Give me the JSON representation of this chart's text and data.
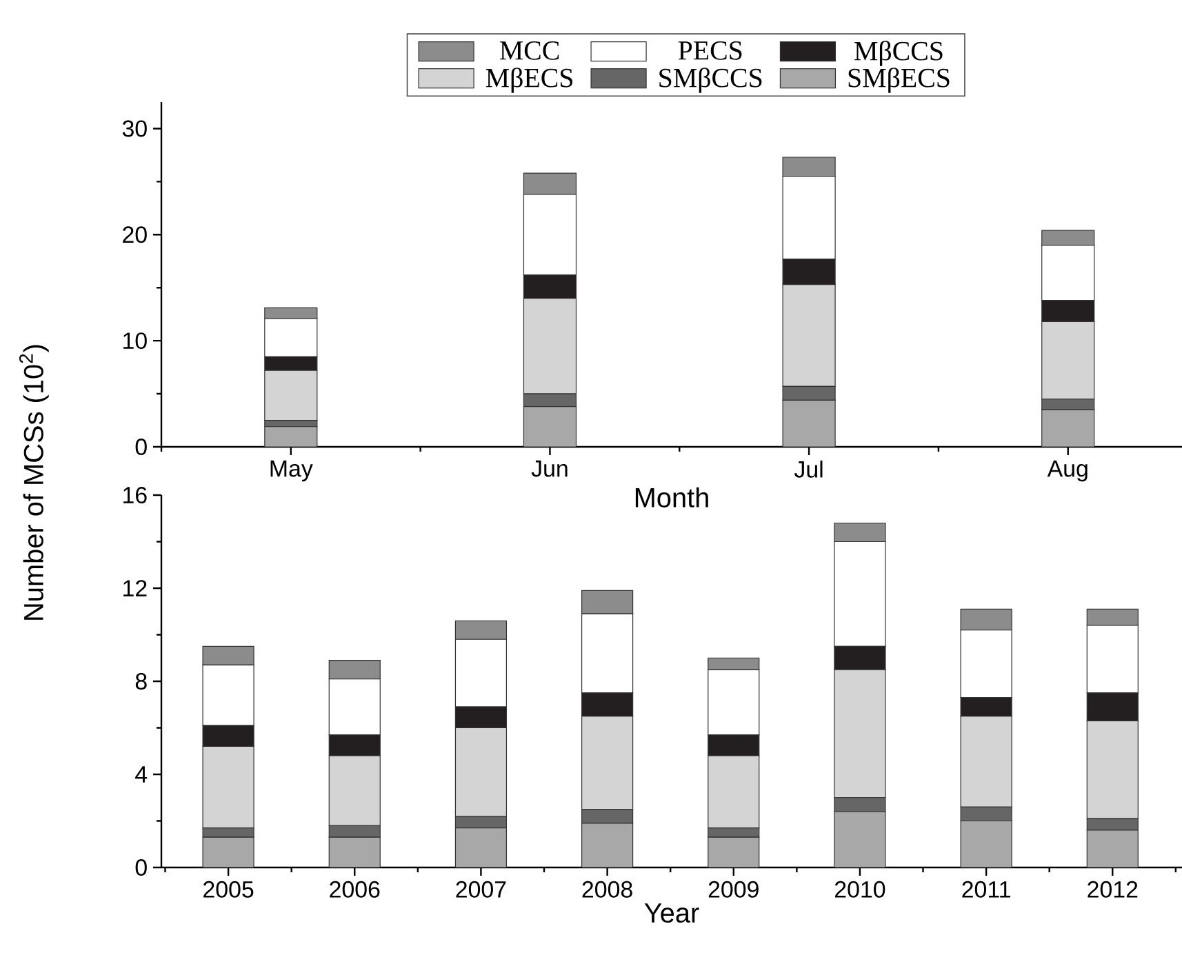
{
  "chart_data": [
    {
      "type": "bar",
      "stacked": true,
      "xlabel": "Month",
      "ylabel": "Number of MCSs (10$^{2}$)",
      "categories": [
        "May",
        "Jun",
        "Jul",
        "Aug"
      ],
      "ylim": [
        0,
        32.5
      ],
      "yticks": [
        0,
        10,
        20,
        30
      ],
      "legend": "top",
      "grid": false,
      "series": [
        {
          "name": "SMβECS",
          "color": "#a8a8a8",
          "values": [
            1.9,
            3.8,
            4.4,
            3.5
          ]
        },
        {
          "name": "SMβCCS",
          "color": "#666666",
          "values": [
            0.6,
            1.2,
            1.3,
            1.0
          ]
        },
        {
          "name": "MβECS",
          "color": "#d4d4d4",
          "values": [
            4.7,
            9.0,
            9.6,
            7.3
          ]
        },
        {
          "name": "MβCCS",
          "color": "#231f20",
          "values": [
            1.3,
            2.2,
            2.4,
            2.0
          ]
        },
        {
          "name": "PECS",
          "color": "#ffffff",
          "values": [
            3.6,
            7.6,
            7.8,
            5.2
          ]
        },
        {
          "name": "MCC",
          "color": "#8c8c8c",
          "values": [
            1.0,
            2.0,
            1.8,
            1.4
          ]
        }
      ]
    },
    {
      "type": "bar",
      "stacked": true,
      "xlabel": "Year",
      "categories": [
        "2005",
        "2006",
        "2007",
        "2008",
        "2009",
        "2010",
        "2011",
        "2012"
      ],
      "ylim": [
        0,
        16
      ],
      "yticks": [
        0,
        4,
        8,
        12,
        16
      ],
      "legend": false,
      "grid": false,
      "series": [
        {
          "color": "#a8a8a8",
          "values": [
            1.3,
            1.3,
            1.7,
            1.9,
            1.3,
            2.4,
            2.0,
            1.6
          ]
        },
        {
          "color": "#666666",
          "values": [
            0.4,
            0.5,
            0.5,
            0.6,
            0.4,
            0.6,
            0.6,
            0.5
          ]
        },
        {
          "color": "#d4d4d4",
          "values": [
            3.5,
            3.0,
            3.8,
            4.0,
            3.1,
            5.5,
            3.9,
            4.2
          ]
        },
        {
          "color": "#231f20",
          "values": [
            0.9,
            0.9,
            0.9,
            1.0,
            0.9,
            1.0,
            0.8,
            1.2
          ]
        },
        {
          "color": "#ffffff",
          "values": [
            2.6,
            2.4,
            2.9,
            3.4,
            2.8,
            4.5,
            2.9,
            2.9
          ]
        },
        {
          "color": "#8c8c8c",
          "values": [
            0.8,
            0.8,
            0.8,
            1.0,
            0.5,
            0.8,
            0.9,
            0.7
          ]
        }
      ]
    }
  ]
}
